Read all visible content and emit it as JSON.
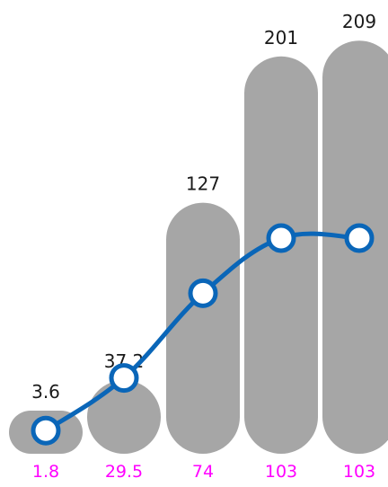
{
  "chart_data": {
    "type": "bar",
    "bar_values": [
      3.6,
      37.2,
      127,
      201,
      209
    ],
    "bar_labels": [
      "3.6",
      "37.2",
      "127",
      "201",
      "209"
    ],
    "line_values": [
      1.8,
      29.5,
      74,
      103,
      103
    ],
    "line_labels": [
      "1.8",
      "29.5",
      "74",
      "103",
      "103"
    ],
    "bar_color": "#a6a6a6",
    "line_color": "#0a66b8",
    "line_label_color": "#ff00ff",
    "grid": false
  }
}
